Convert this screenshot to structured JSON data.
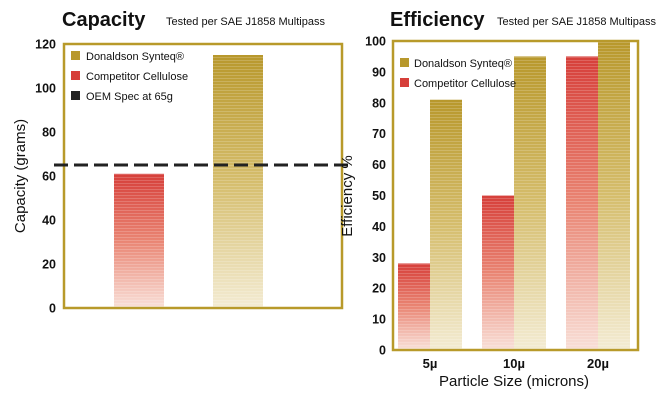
{
  "colors": {
    "gold": "#b8982c",
    "red": "#d63f3a",
    "frame": "#b89a2a",
    "oem": "#222222"
  },
  "chart_data": [
    {
      "type": "bar",
      "title": "Capacity",
      "subtitle": "Tested per SAE J1858 Multipass",
      "ylabel": "Capacity (grams)",
      "xlabel": "",
      "ylim": [
        0,
        120
      ],
      "yticks": [
        "0",
        "20",
        "40",
        "60",
        "80",
        "100",
        "120"
      ],
      "categories": [
        "",
        ""
      ],
      "bars": [
        {
          "series": "Competitor Cellulose",
          "value": 61
        },
        {
          "series": "Donaldson Synteq®",
          "value": 115
        }
      ],
      "reference_line": {
        "name": "OEM Spec at 65g",
        "value": 65,
        "style": "dashed"
      },
      "legend": [
        "Donaldson Synteq®",
        "Competitor Cellulose",
        "OEM Spec at 65g"
      ],
      "legend_position": "top-left",
      "grid": false
    },
    {
      "type": "bar",
      "title": "Efficiency",
      "subtitle": "Tested per SAE J1858 Multipass",
      "ylabel": "Efficiency %",
      "xlabel": "Particle Size (microns)",
      "ylim": [
        0,
        100
      ],
      "yticks": [
        "0",
        "10",
        "20",
        "30",
        "40",
        "50",
        "60",
        "70",
        "80",
        "90",
        "100"
      ],
      "categories": [
        "5µ",
        "10µ",
        "20µ"
      ],
      "series": [
        {
          "name": "Competitor Cellulose",
          "values": [
            28,
            50,
            95
          ]
        },
        {
          "name": "Donaldson Synteq®",
          "values": [
            81,
            95,
            100
          ]
        }
      ],
      "legend": [
        "Donaldson Synteq®",
        "Competitor Cellulose"
      ],
      "legend_position": "top-left",
      "grid": false
    }
  ]
}
